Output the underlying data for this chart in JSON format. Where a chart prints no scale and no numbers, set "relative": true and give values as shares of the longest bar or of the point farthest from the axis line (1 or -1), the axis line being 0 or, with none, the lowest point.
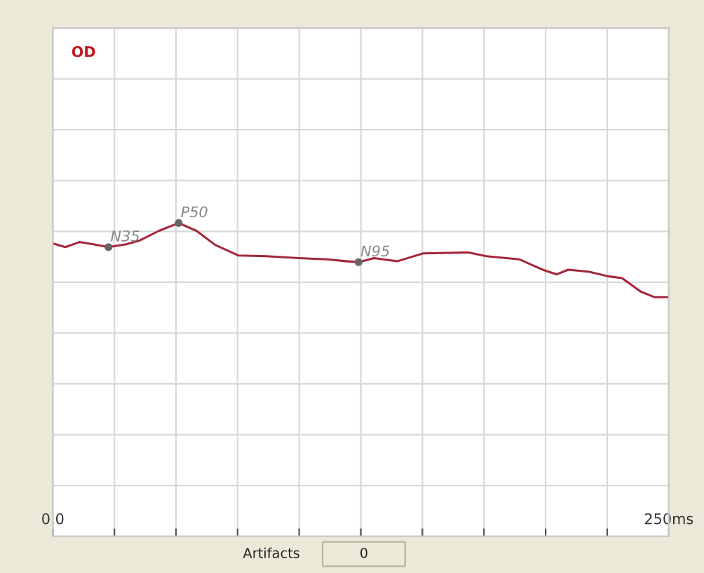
{
  "chart_data": {
    "type": "line",
    "title": "OD",
    "relative": true,
    "x": [
      0,
      5.1,
      10.8,
      16.5,
      22.6,
      29.8,
      35.5,
      43.1,
      51.1,
      58.3,
      65.9,
      75.4,
      86.7,
      100,
      111.4,
      119,
      124.1,
      130.4,
      139.9,
      150.3,
      168.4,
      176,
      189.3,
      198.8,
      204.5,
      209.2,
      217.7,
      225.3,
      231,
      238.6,
      244.3,
      250
    ],
    "series": [
      {
        "color": "#a3283a",
        "values": [
          0.935,
          0.923,
          0.939,
          0.932,
          0.923,
          0.932,
          0.945,
          0.975,
          1.0,
          0.975,
          0.93,
          0.896,
          0.894,
          0.888,
          0.884,
          0.878,
          0.875,
          0.888,
          0.878,
          0.903,
          0.906,
          0.894,
          0.884,
          0.851,
          0.836,
          0.851,
          0.844,
          0.83,
          0.824,
          0.781,
          0.763,
          0.763
        ]
      }
    ],
    "xlim": [
      0,
      250
    ],
    "xticks": [
      {
        "value": 0,
        "label": "0.0"
      },
      {
        "value": 25,
        "label": null
      },
      {
        "value": 50,
        "label": null
      },
      {
        "value": 75,
        "label": null
      },
      {
        "value": 100,
        "label": null
      },
      {
        "value": 125,
        "label": null
      },
      {
        "value": 150,
        "label": null
      },
      {
        "value": 175,
        "label": null
      },
      {
        "value": 200,
        "label": null
      },
      {
        "value": 225,
        "label": null
      },
      {
        "value": 250,
        "label": "250ms"
      }
    ],
    "grid": true,
    "marker": "none",
    "line_style": "solid",
    "annotations": [
      {
        "text": "N35",
        "x": 22.6,
        "y": 0.923
      },
      {
        "text": "P50",
        "x": 51.1,
        "y": 1.0
      },
      {
        "text": "N95",
        "x": 124.1,
        "y": 0.875
      },
      "Artifacts",
      "0"
    ]
  }
}
